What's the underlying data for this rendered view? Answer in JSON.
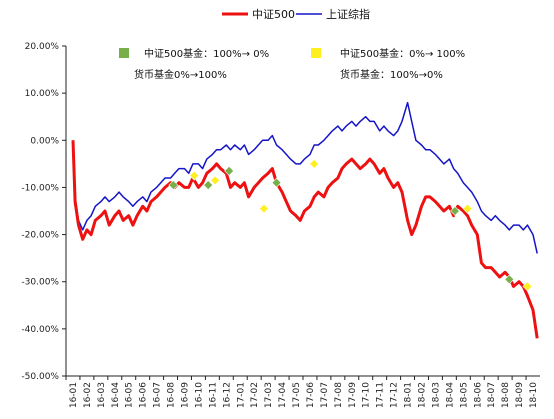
{
  "chart_data": {
    "type": "line",
    "title": "",
    "xlabel": "",
    "ylabel": "",
    "ylim": [
      -0.5,
      0.2
    ],
    "ytick_values": [
      0.2,
      0.1,
      0.0,
      -0.1,
      -0.2,
      -0.3,
      -0.4,
      -0.5
    ],
    "ytick_labels": [
      "20.00%",
      "10.00%",
      "0.00%",
      "-10.00%",
      "-20.00%",
      "-30.00%",
      "-40.00%",
      "-50.00%"
    ],
    "x_categories": [
      "16-01",
      "16-02",
      "16-03",
      "16-04",
      "16-05",
      "16-06",
      "16-07",
      "16-08",
      "16-09",
      "16-10",
      "16-11",
      "16-12",
      "17-01",
      "17-02",
      "17-03",
      "17-04",
      "17-05",
      "17-06",
      "17-07",
      "17-08",
      "17-09",
      "17-10",
      "17-11",
      "17-12",
      "18-01",
      "18-02",
      "18-03",
      "18-04",
      "18-05",
      "18-06",
      "18-07",
      "18-08",
      "18-09",
      "18-10"
    ],
    "legend_position": "top-center",
    "series": [
      {
        "name": "中证500",
        "color": "#ee1111",
        "values": [
          [
            0.0,
            0.0
          ],
          [
            0.15,
            -0.13
          ],
          [
            0.4,
            -0.18
          ],
          [
            0.7,
            -0.21
          ],
          [
            1.0,
            -0.19
          ],
          [
            1.3,
            -0.2
          ],
          [
            1.6,
            -0.17
          ],
          [
            2.0,
            -0.16
          ],
          [
            2.3,
            -0.15
          ],
          [
            2.6,
            -0.18
          ],
          [
            3.0,
            -0.16
          ],
          [
            3.3,
            -0.15
          ],
          [
            3.6,
            -0.17
          ],
          [
            4.0,
            -0.16
          ],
          [
            4.3,
            -0.18
          ],
          [
            4.6,
            -0.16
          ],
          [
            5.0,
            -0.14
          ],
          [
            5.3,
            -0.15
          ],
          [
            5.6,
            -0.13
          ],
          [
            6.0,
            -0.12
          ],
          [
            6.3,
            -0.11
          ],
          [
            6.6,
            -0.1
          ],
          [
            7.0,
            -0.09
          ],
          [
            7.3,
            -0.1
          ],
          [
            7.6,
            -0.09
          ],
          [
            8.0,
            -0.1
          ],
          [
            8.3,
            -0.1
          ],
          [
            8.6,
            -0.08
          ],
          [
            9.0,
            -0.1
          ],
          [
            9.3,
            -0.09
          ],
          [
            9.6,
            -0.07
          ],
          [
            10.0,
            -0.06
          ],
          [
            10.3,
            -0.05
          ],
          [
            10.6,
            -0.06
          ],
          [
            11.0,
            -0.07
          ],
          [
            11.3,
            -0.1
          ],
          [
            11.6,
            -0.09
          ],
          [
            12.0,
            -0.1
          ],
          [
            12.3,
            -0.09
          ],
          [
            12.6,
            -0.12
          ],
          [
            13.0,
            -0.1
          ],
          [
            13.3,
            -0.09
          ],
          [
            13.6,
            -0.08
          ],
          [
            14.0,
            -0.07
          ],
          [
            14.3,
            -0.06
          ],
          [
            14.6,
            -0.09
          ],
          [
            15.0,
            -0.11
          ],
          [
            15.3,
            -0.13
          ],
          [
            15.6,
            -0.15
          ],
          [
            16.0,
            -0.16
          ],
          [
            16.3,
            -0.17
          ],
          [
            16.6,
            -0.15
          ],
          [
            17.0,
            -0.14
          ],
          [
            17.3,
            -0.12
          ],
          [
            17.6,
            -0.11
          ],
          [
            18.0,
            -0.12
          ],
          [
            18.3,
            -0.1
          ],
          [
            18.6,
            -0.09
          ],
          [
            19.0,
            -0.08
          ],
          [
            19.3,
            -0.06
          ],
          [
            19.6,
            -0.05
          ],
          [
            20.0,
            -0.04
          ],
          [
            20.3,
            -0.05
          ],
          [
            20.6,
            -0.06
          ],
          [
            21.0,
            -0.05
          ],
          [
            21.3,
            -0.04
          ],
          [
            21.6,
            -0.05
          ],
          [
            22.0,
            -0.07
          ],
          [
            22.3,
            -0.06
          ],
          [
            22.6,
            -0.08
          ],
          [
            23.0,
            -0.1
          ],
          [
            23.3,
            -0.09
          ],
          [
            23.6,
            -0.11
          ],
          [
            24.0,
            -0.17
          ],
          [
            24.3,
            -0.2
          ],
          [
            24.6,
            -0.18
          ],
          [
            25.0,
            -0.14
          ],
          [
            25.3,
            -0.12
          ],
          [
            25.6,
            -0.12
          ],
          [
            26.0,
            -0.13
          ],
          [
            26.3,
            -0.14
          ],
          [
            26.6,
            -0.15
          ],
          [
            27.0,
            -0.14
          ],
          [
            27.3,
            -0.16
          ],
          [
            27.6,
            -0.14
          ],
          [
            28.0,
            -0.15
          ],
          [
            28.3,
            -0.16
          ],
          [
            28.6,
            -0.18
          ],
          [
            29.0,
            -0.2
          ],
          [
            29.3,
            -0.26
          ],
          [
            29.6,
            -0.27
          ],
          [
            30.0,
            -0.27
          ],
          [
            30.3,
            -0.28
          ],
          [
            30.6,
            -0.29
          ],
          [
            31.0,
            -0.28
          ],
          [
            31.3,
            -0.29
          ],
          [
            31.6,
            -0.31
          ],
          [
            32.0,
            -0.3
          ],
          [
            32.3,
            -0.31
          ],
          [
            32.6,
            -0.33
          ],
          [
            33.0,
            -0.36
          ],
          [
            33.3,
            -0.42
          ]
        ]
      },
      {
        "name": "上证综指",
        "color": "#1515c8",
        "values": [
          [
            0.0,
            0.0
          ],
          [
            0.15,
            -0.12
          ],
          [
            0.4,
            -0.17
          ],
          [
            0.7,
            -0.19
          ],
          [
            1.0,
            -0.17
          ],
          [
            1.3,
            -0.16
          ],
          [
            1.6,
            -0.14
          ],
          [
            2.0,
            -0.13
          ],
          [
            2.3,
            -0.12
          ],
          [
            2.6,
            -0.13
          ],
          [
            3.0,
            -0.12
          ],
          [
            3.3,
            -0.11
          ],
          [
            3.6,
            -0.12
          ],
          [
            4.0,
            -0.13
          ],
          [
            4.3,
            -0.14
          ],
          [
            4.6,
            -0.13
          ],
          [
            5.0,
            -0.12
          ],
          [
            5.3,
            -0.13
          ],
          [
            5.6,
            -0.11
          ],
          [
            6.0,
            -0.1
          ],
          [
            6.3,
            -0.09
          ],
          [
            6.6,
            -0.08
          ],
          [
            7.0,
            -0.08
          ],
          [
            7.3,
            -0.07
          ],
          [
            7.6,
            -0.06
          ],
          [
            8.0,
            -0.06
          ],
          [
            8.3,
            -0.07
          ],
          [
            8.6,
            -0.05
          ],
          [
            9.0,
            -0.05
          ],
          [
            9.3,
            -0.06
          ],
          [
            9.6,
            -0.04
          ],
          [
            10.0,
            -0.03
          ],
          [
            10.3,
            -0.02
          ],
          [
            10.6,
            -0.02
          ],
          [
            11.0,
            -0.01
          ],
          [
            11.3,
            -0.02
          ],
          [
            11.6,
            -0.01
          ],
          [
            12.0,
            -0.02
          ],
          [
            12.3,
            -0.01
          ],
          [
            12.6,
            -0.03
          ],
          [
            13.0,
            -0.02
          ],
          [
            13.3,
            -0.01
          ],
          [
            13.6,
            0.0
          ],
          [
            14.0,
            0.0
          ],
          [
            14.3,
            0.01
          ],
          [
            14.6,
            -0.01
          ],
          [
            15.0,
            -0.02
          ],
          [
            15.3,
            -0.03
          ],
          [
            15.6,
            -0.04
          ],
          [
            16.0,
            -0.05
          ],
          [
            16.3,
            -0.05
          ],
          [
            16.6,
            -0.04
          ],
          [
            17.0,
            -0.03
          ],
          [
            17.3,
            -0.01
          ],
          [
            17.6,
            -0.01
          ],
          [
            18.0,
            0.0
          ],
          [
            18.3,
            0.01
          ],
          [
            18.6,
            0.02
          ],
          [
            19.0,
            0.03
          ],
          [
            19.3,
            0.02
          ],
          [
            19.6,
            0.03
          ],
          [
            20.0,
            0.04
          ],
          [
            20.3,
            0.03
          ],
          [
            20.6,
            0.04
          ],
          [
            21.0,
            0.05
          ],
          [
            21.3,
            0.04
          ],
          [
            21.6,
            0.04
          ],
          [
            22.0,
            0.02
          ],
          [
            22.3,
            0.03
          ],
          [
            22.6,
            0.02
          ],
          [
            23.0,
            0.01
          ],
          [
            23.3,
            0.02
          ],
          [
            23.6,
            0.04
          ],
          [
            24.0,
            0.08
          ],
          [
            24.3,
            0.04
          ],
          [
            24.6,
            0.0
          ],
          [
            25.0,
            -0.01
          ],
          [
            25.3,
            -0.02
          ],
          [
            25.6,
            -0.02
          ],
          [
            26.0,
            -0.03
          ],
          [
            26.3,
            -0.04
          ],
          [
            26.6,
            -0.05
          ],
          [
            27.0,
            -0.04
          ],
          [
            27.3,
            -0.06
          ],
          [
            27.6,
            -0.07
          ],
          [
            28.0,
            -0.09
          ],
          [
            28.3,
            -0.1
          ],
          [
            28.6,
            -0.11
          ],
          [
            29.0,
            -0.13
          ],
          [
            29.3,
            -0.15
          ],
          [
            29.6,
            -0.16
          ],
          [
            30.0,
            -0.17
          ],
          [
            30.3,
            -0.16
          ],
          [
            30.6,
            -0.17
          ],
          [
            31.0,
            -0.18
          ],
          [
            31.3,
            -0.19
          ],
          [
            31.6,
            -0.18
          ],
          [
            32.0,
            -0.18
          ],
          [
            32.3,
            -0.19
          ],
          [
            32.6,
            -0.18
          ],
          [
            33.0,
            -0.2
          ],
          [
            33.3,
            -0.24
          ]
        ]
      }
    ],
    "markers": [
      {
        "type": "green",
        "color": "#77b04a",
        "points": [
          [
            7.2,
            -0.095
          ],
          [
            9.7,
            -0.095
          ],
          [
            11.2,
            -0.065
          ],
          [
            14.6,
            -0.09
          ],
          [
            27.4,
            -0.15
          ],
          [
            31.3,
            -0.295
          ]
        ]
      },
      {
        "type": "yellow",
        "color": "#ffef1f",
        "points": [
          [
            8.7,
            -0.075
          ],
          [
            10.2,
            -0.085
          ],
          [
            13.7,
            -0.145
          ],
          [
            17.3,
            -0.05
          ],
          [
            28.3,
            -0.145
          ],
          [
            32.6,
            -0.31
          ]
        ]
      }
    ],
    "annotations": [
      {
        "marker": "green",
        "line1": "中证500基金：100%→ 0%",
        "line2": "货币基金0%→100%"
      },
      {
        "marker": "yellow",
        "line1": "中证500基金：0%→ 100%",
        "line2": "货币基金：100%→0%"
      }
    ]
  }
}
